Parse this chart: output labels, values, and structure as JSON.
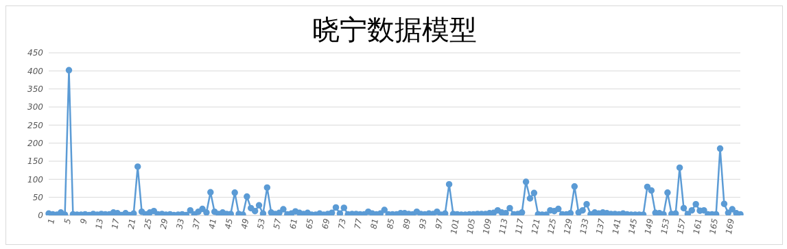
{
  "chart_data": {
    "type": "line",
    "title": "晓宁数据模型",
    "categories": [
      "1",
      null,
      null,
      null,
      "5",
      null,
      null,
      null,
      "9",
      null,
      null,
      null,
      "13",
      null,
      null,
      null,
      "17",
      null,
      null,
      null,
      "21",
      null,
      null,
      null,
      "25",
      null,
      null,
      null,
      "29",
      null,
      null,
      null,
      "33",
      null,
      null,
      null,
      "37",
      null,
      null,
      null,
      "41",
      null,
      null,
      null,
      "45",
      null,
      null,
      null,
      "49",
      null,
      null,
      null,
      "53",
      null,
      null,
      null,
      "57",
      null,
      null,
      null,
      "61",
      null,
      null,
      null,
      "65",
      null,
      null,
      null,
      "69",
      null,
      null,
      null,
      "73",
      null,
      null,
      null,
      "77",
      null,
      null,
      null,
      "81",
      null,
      null,
      null,
      "85",
      null,
      null,
      null,
      "89",
      null,
      null,
      null,
      "93",
      null,
      null,
      null,
      "97",
      null,
      null,
      null,
      "101",
      null,
      null,
      null,
      "105",
      null,
      null,
      null,
      "109",
      null,
      null,
      null,
      "113",
      null,
      null,
      null,
      "117",
      null,
      null,
      null,
      "121",
      null,
      null,
      null,
      "125",
      null,
      null,
      null,
      "129",
      null,
      null,
      null,
      "133",
      null,
      null,
      null,
      "137",
      null,
      null,
      null,
      "141",
      null,
      null,
      null,
      "145",
      null,
      null,
      null,
      "149",
      null,
      null,
      null,
      "153",
      null,
      null,
      null,
      "157",
      null,
      null,
      null,
      "161",
      null,
      null,
      null,
      "165",
      null,
      null,
      null,
      "169",
      null,
      null,
      null
    ],
    "series": [
      {
        "color": "#5b9bd5",
        "values": [
          5,
          3,
          2,
          8,
          2,
          402,
          3,
          2,
          2,
          3,
          1,
          4,
          2,
          4,
          3,
          3,
          8,
          6,
          1,
          6,
          1,
          5,
          135,
          10,
          3,
          8,
          12,
          3,
          4,
          2,
          3,
          1,
          2,
          3,
          1,
          14,
          3,
          10,
          18,
          8,
          64,
          10,
          4,
          8,
          4,
          4,
          63,
          4,
          2,
          52,
          20,
          12,
          28,
          5,
          77,
          8,
          4,
          7,
          17,
          3,
          5,
          11,
          7,
          4,
          7,
          2,
          2,
          5,
          2,
          4,
          7,
          22,
          5,
          21,
          3,
          4,
          4,
          3,
          3,
          10,
          5,
          3,
          5,
          15,
          3,
          3,
          3,
          6,
          6,
          4,
          3,
          10,
          4,
          3,
          5,
          4,
          10,
          2,
          5,
          86,
          4,
          3,
          2,
          2,
          3,
          3,
          4,
          4,
          4,
          6,
          7,
          14,
          8,
          6,
          20,
          3,
          4,
          8,
          93,
          47,
          62,
          3,
          2,
          2,
          14,
          12,
          18,
          3,
          3,
          6,
          80,
          8,
          14,
          31,
          3,
          8,
          5,
          8,
          6,
          4,
          4,
          3,
          5,
          3,
          2,
          2,
          2,
          2,
          79,
          69,
          7,
          6,
          3,
          63,
          4,
          5,
          132,
          20,
          4,
          14,
          31,
          13,
          14,
          3,
          3,
          3,
          185,
          32,
          7,
          17,
          6,
          3
        ]
      }
    ],
    "ylim": [
      0,
      450
    ],
    "yticks": [
      0,
      50,
      100,
      150,
      200,
      250,
      300,
      350,
      400,
      450
    ],
    "grid": "y",
    "legend": false,
    "marker": "circle",
    "line_style": "solid"
  }
}
